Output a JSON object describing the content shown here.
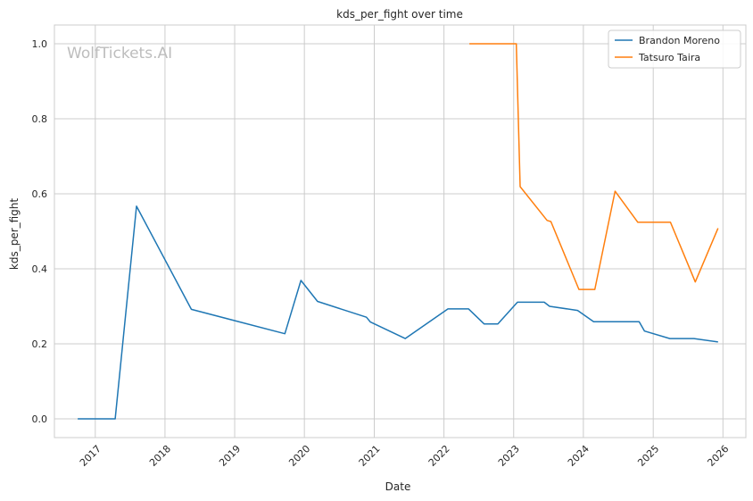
{
  "chart_data": {
    "type": "line",
    "title": "kds_per_fight over time",
    "xlabel": "Date",
    "ylabel": "kds_per_fight",
    "watermark": "WolfTickets.AI",
    "xlim": [
      "2016-06-01",
      "2026-05-01"
    ],
    "ylim": [
      -0.05,
      1.05
    ],
    "x_ticks": [
      "2017-01-01",
      "2018-01-01",
      "2019-01-01",
      "2020-01-01",
      "2021-01-01",
      "2022-01-01",
      "2023-01-01",
      "2024-01-01",
      "2025-01-01",
      "2026-01-01"
    ],
    "x_tick_labels": [
      "2017",
      "2018",
      "2019",
      "2020",
      "2021",
      "2022",
      "2023",
      "2024",
      "2025",
      "2026"
    ],
    "y_ticks": [
      0.0,
      0.2,
      0.4,
      0.6,
      0.8,
      1.0
    ],
    "y_tick_labels": [
      "0.0",
      "0.2",
      "0.4",
      "0.6",
      "0.8",
      "1.0"
    ],
    "grid": true,
    "legend_position": "top-right",
    "series": [
      {
        "name": "Brandon Moreno",
        "color": "#1f77b4",
        "points": [
          [
            "2016-10-01",
            0.0
          ],
          [
            "2017-04-15",
            0.0
          ],
          [
            "2017-08-05",
            0.567
          ],
          [
            "2018-05-19",
            0.292
          ],
          [
            "2019-09-21",
            0.227
          ],
          [
            "2019-12-14",
            0.369
          ],
          [
            "2020-03-10",
            0.313
          ],
          [
            "2020-11-21",
            0.271
          ],
          [
            "2020-12-12",
            0.258
          ],
          [
            "2021-06-12",
            0.214
          ],
          [
            "2022-01-22",
            0.293
          ],
          [
            "2022-05-10",
            0.293
          ],
          [
            "2022-07-30",
            0.253
          ],
          [
            "2022-10-10",
            0.253
          ],
          [
            "2023-01-21",
            0.311
          ],
          [
            "2023-06-10",
            0.311
          ],
          [
            "2023-07-08",
            0.3
          ],
          [
            "2023-12-02",
            0.289
          ],
          [
            "2024-02-24",
            0.259
          ],
          [
            "2024-10-19",
            0.259
          ],
          [
            "2024-11-16",
            0.234
          ],
          [
            "2025-03-29",
            0.214
          ],
          [
            "2025-08-02",
            0.214
          ],
          [
            "2025-12-06",
            0.205
          ]
        ]
      },
      {
        "name": "Tatsuro Taira",
        "color": "#ff7f0e",
        "points": [
          [
            "2022-05-14",
            1.0
          ],
          [
            "2023-01-15",
            1.0
          ],
          [
            "2023-02-04",
            0.619
          ],
          [
            "2023-06-25",
            0.529
          ],
          [
            "2023-07-15",
            0.526
          ],
          [
            "2023-12-09",
            0.345
          ],
          [
            "2024-03-01",
            0.345
          ],
          [
            "2024-06-15",
            0.607
          ],
          [
            "2024-10-12",
            0.524
          ],
          [
            "2025-04-01",
            0.524
          ],
          [
            "2025-08-09",
            0.365
          ],
          [
            "2025-12-06",
            0.508
          ]
        ]
      }
    ]
  }
}
